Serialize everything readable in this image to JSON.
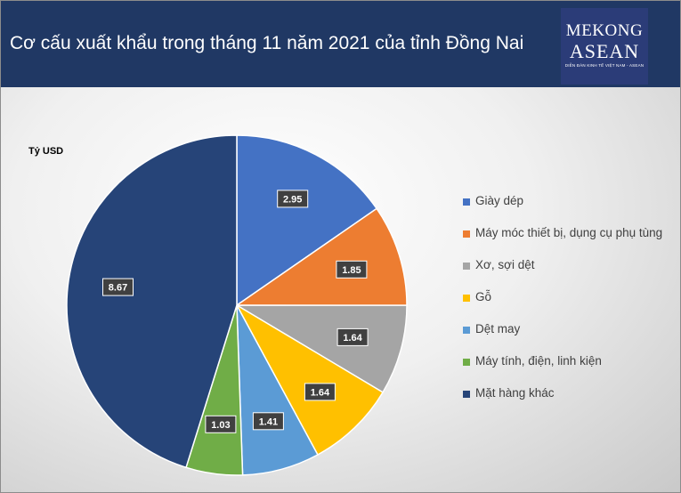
{
  "header": {
    "title": "Cơ cấu xuất khẩu trong tháng 11 năm 2021 của tỉnh Đồng Nai",
    "background": "#203864"
  },
  "logo": {
    "line1": "MEKONG",
    "line2": "ASEAN",
    "line3": "DIỄN ĐÀN KINH TẾ VIỆT NAM - ASEAN"
  },
  "chart_data": {
    "type": "pie",
    "title": "Cơ cấu xuất khẩu trong tháng 11 năm 2021 của tỉnh Đồng Nai",
    "unit_label": "Tỷ USD",
    "start_angle_deg": 0,
    "direction": "clockwise",
    "legend_position": "right",
    "slices": [
      {
        "name": "Giày dép",
        "value": 2.95,
        "label": "2.95",
        "color": "#4472c4"
      },
      {
        "name": "Máy móc thiết bị, dụng cụ phụ tùng",
        "value": 1.85,
        "label": "1.85",
        "color": "#ed7d31"
      },
      {
        "name": "Xơ, sợi dệt",
        "value": 1.64,
        "label": "1.64",
        "color": "#a5a5a5"
      },
      {
        "name": "Gỗ",
        "value": 1.64,
        "label": "1.64",
        "color": "#ffc000"
      },
      {
        "name": "Dệt may",
        "value": 1.41,
        "label": "1.41",
        "color": "#5b9bd5"
      },
      {
        "name": "Máy tính, điện, linh kiện",
        "value": 1.03,
        "label": "1.03",
        "color": "#70ad47"
      },
      {
        "name": "Mặt hàng khác",
        "value": 8.67,
        "label": "8.67",
        "color": "#264478"
      }
    ]
  }
}
